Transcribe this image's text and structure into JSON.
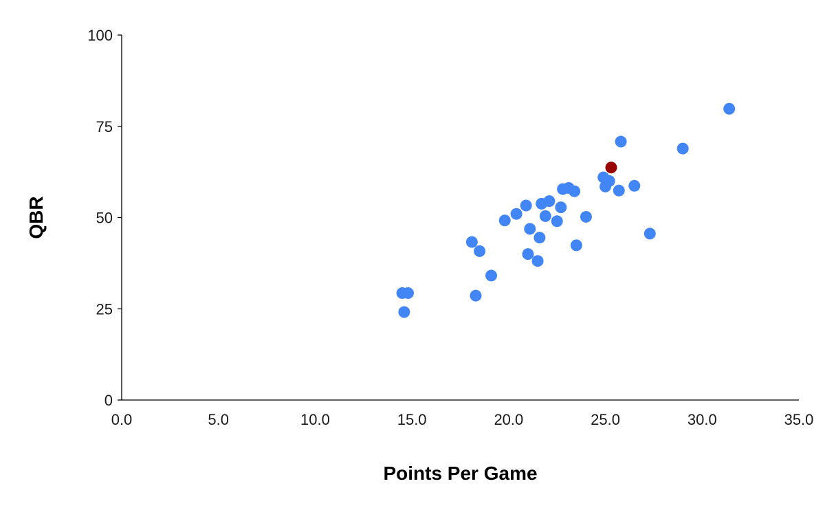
{
  "chart_data": {
    "type": "scatter",
    "title": "",
    "xlabel": "Points Per Game",
    "ylabel": "QBR",
    "xlim": [
      0,
      35
    ],
    "ylim": [
      0,
      100
    ],
    "x_ticks": [
      "0.0",
      "5.0",
      "10.0",
      "15.0",
      "20.0",
      "25.0",
      "30.0",
      "35.0"
    ],
    "y_ticks": [
      "0",
      "25",
      "50",
      "75",
      "100"
    ],
    "grid": false,
    "legend": "none",
    "colors": {
      "primary": "#4285f4",
      "highlight": "#990000"
    },
    "points": [
      {
        "x": 14.5,
        "y": 29.3
      },
      {
        "x": 14.8,
        "y": 29.3
      },
      {
        "x": 14.6,
        "y": 24.1
      },
      {
        "x": 18.1,
        "y": 43.3
      },
      {
        "x": 18.5,
        "y": 40.8
      },
      {
        "x": 18.3,
        "y": 28.6
      },
      {
        "x": 19.1,
        "y": 34.1
      },
      {
        "x": 19.8,
        "y": 49.2
      },
      {
        "x": 20.4,
        "y": 51.0
      },
      {
        "x": 20.9,
        "y": 53.3
      },
      {
        "x": 21.1,
        "y": 46.9
      },
      {
        "x": 21.0,
        "y": 40.0
      },
      {
        "x": 21.5,
        "y": 38.1
      },
      {
        "x": 21.6,
        "y": 44.5
      },
      {
        "x": 21.7,
        "y": 53.8
      },
      {
        "x": 21.9,
        "y": 50.4
      },
      {
        "x": 22.1,
        "y": 54.5
      },
      {
        "x": 22.5,
        "y": 49.0
      },
      {
        "x": 22.7,
        "y": 52.8
      },
      {
        "x": 22.8,
        "y": 57.8
      },
      {
        "x": 23.1,
        "y": 58.1
      },
      {
        "x": 23.4,
        "y": 57.2
      },
      {
        "x": 23.5,
        "y": 42.4
      },
      {
        "x": 24.0,
        "y": 50.2
      },
      {
        "x": 24.9,
        "y": 61.0
      },
      {
        "x": 25.0,
        "y": 58.5
      },
      {
        "x": 25.2,
        "y": 60.0
      },
      {
        "x": 25.7,
        "y": 57.4
      },
      {
        "x": 25.8,
        "y": 70.8
      },
      {
        "x": 26.5,
        "y": 58.7
      },
      {
        "x": 27.3,
        "y": 45.6
      },
      {
        "x": 29.0,
        "y": 68.9
      },
      {
        "x": 31.4,
        "y": 79.8
      }
    ],
    "highlight_points": [
      {
        "x": 25.3,
        "y": 63.7
      }
    ]
  }
}
